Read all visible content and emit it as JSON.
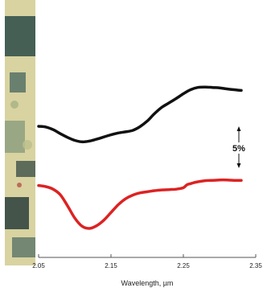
{
  "chart_data": {
    "type": "line",
    "xlabel": "Wavelength, µm",
    "ylabel": "",
    "title": "",
    "xlim": [
      2.05,
      2.35
    ],
    "xticks": [
      "2.05",
      "2.15",
      "2.25",
      "2.35"
    ],
    "grid": false,
    "scale_bar_label": "5%",
    "series": [
      {
        "color": "#111111",
        "x": [
          2.05,
          2.06,
          2.07,
          2.08,
          2.09,
          2.1,
          2.11,
          2.12,
          2.13,
          2.14,
          2.15,
          2.16,
          2.17,
          2.18,
          2.19,
          2.2,
          2.21,
          2.22,
          2.23,
          2.24,
          2.25,
          2.26,
          2.27,
          2.28,
          2.29,
          2.3,
          2.31,
          2.32,
          2.33
        ],
        "y": [
          0.0,
          -0.2,
          -0.9,
          -2.0,
          -3.0,
          -3.8,
          -4.2,
          -4.0,
          -3.5,
          -2.9,
          -2.3,
          -1.8,
          -1.5,
          -1.1,
          -0.1,
          1.4,
          3.4,
          5.1,
          6.3,
          7.5,
          8.8,
          9.9,
          10.5,
          10.6,
          10.5,
          10.4,
          10.1,
          9.9,
          9.7
        ]
      },
      {
        "color": "#dd2222",
        "x": [
          2.05,
          2.06,
          2.07,
          2.08,
          2.09,
          2.1,
          2.11,
          2.12,
          2.13,
          2.14,
          2.15,
          2.16,
          2.17,
          2.18,
          2.19,
          2.2,
          2.21,
          2.22,
          2.23,
          2.24,
          2.25,
          2.255,
          2.26,
          2.265,
          2.27,
          2.28,
          2.29,
          2.3,
          2.31,
          2.32,
          2.33
        ],
        "y": [
          -16.0,
          -16.3,
          -17.0,
          -18.5,
          -21.5,
          -24.8,
          -27.0,
          -27.6,
          -26.9,
          -25.4,
          -23.3,
          -21.2,
          -19.6,
          -18.6,
          -18.0,
          -17.7,
          -17.4,
          -17.2,
          -17.1,
          -17.0,
          -16.6,
          -15.8,
          -15.5,
          -15.2,
          -15.0,
          -14.7,
          -14.6,
          -14.5,
          -14.5,
          -14.6,
          -14.6
        ]
      }
    ]
  },
  "texture_strip": {
    "description_colors": [
      "#d9d4a0",
      "#1f3a3a",
      "#c9c690",
      "#3a5a56"
    ]
  }
}
